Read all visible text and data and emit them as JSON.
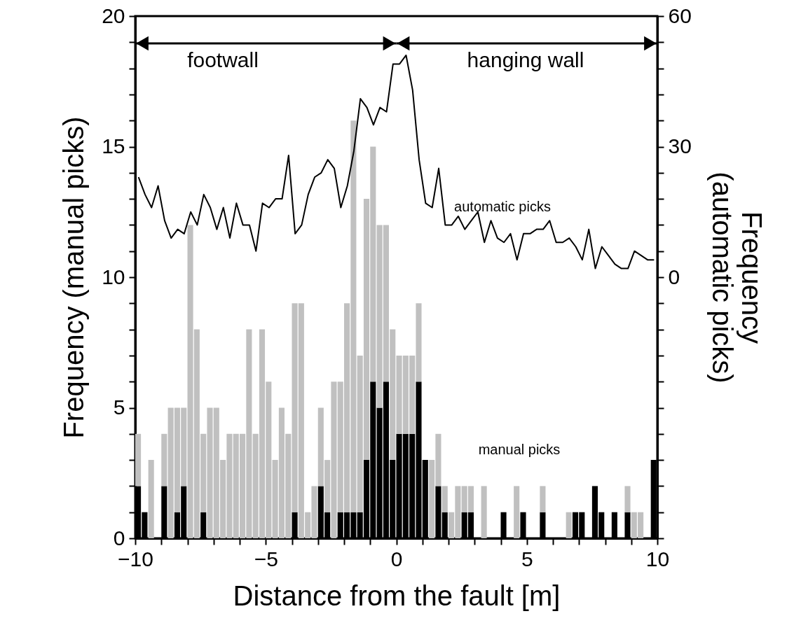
{
  "chart_data": {
    "type": "bar",
    "x": [
      -9.875,
      -9.625,
      -9.375,
      -9.125,
      -8.875,
      -8.625,
      -8.375,
      -8.125,
      -7.875,
      -7.625,
      -7.375,
      -7.125,
      -6.875,
      -6.625,
      -6.375,
      -6.125,
      -5.875,
      -5.625,
      -5.375,
      -5.125,
      -4.875,
      -4.625,
      -4.375,
      -4.125,
      -3.875,
      -3.625,
      -3.375,
      -3.125,
      -2.875,
      -2.625,
      -2.375,
      -2.125,
      -1.875,
      -1.625,
      -1.375,
      -1.125,
      -0.875,
      -0.625,
      -0.375,
      -0.125,
      0.125,
      0.375,
      0.625,
      0.875,
      1.125,
      1.375,
      1.625,
      1.875,
      2.125,
      2.375,
      2.625,
      2.875,
      3.125,
      3.375,
      3.625,
      3.875,
      4.125,
      4.375,
      4.625,
      4.875,
      5.125,
      5.375,
      5.625,
      5.875,
      6.125,
      6.375,
      6.625,
      6.875,
      7.125,
      7.375,
      7.625,
      7.875,
      8.125,
      8.375,
      8.625,
      8.875,
      9.125,
      9.375,
      9.625,
      9.875
    ],
    "xlabel": "Distance from the fault [m]",
    "ylabel": "Frequency (manual picks)",
    "y2label": "Frequency (automatic picks)",
    "stacked": true,
    "series": [
      {
        "color": "#000000",
        "values": [
          2,
          1,
          0,
          0,
          2,
          0,
          1,
          2,
          0,
          0,
          1,
          0,
          0,
          0,
          0,
          0,
          0,
          0,
          0,
          0,
          0,
          0,
          0,
          0,
          1,
          0,
          0,
          0,
          2,
          1,
          0,
          1,
          1,
          1,
          1,
          3,
          6,
          5,
          6,
          3,
          4,
          4,
          4,
          6,
          3,
          0,
          2,
          1,
          0,
          0,
          1,
          1,
          0,
          0,
          0,
          0,
          1,
          0,
          0,
          1,
          0,
          0,
          1,
          0,
          0,
          0,
          0,
          1,
          1,
          0,
          2,
          1,
          0,
          1,
          0,
          1,
          0,
          0,
          0,
          3
        ]
      },
      {
        "color": "#c0c0c0",
        "values": [
          2,
          0,
          3,
          0,
          2,
          5,
          4,
          3,
          12,
          8,
          3,
          5,
          5,
          3,
          4,
          4,
          4,
          8,
          4,
          8,
          6,
          3,
          5,
          4,
          8,
          9,
          1,
          2,
          3,
          2,
          6,
          5,
          8,
          15,
          6,
          10,
          9,
          7,
          6,
          5,
          3,
          3,
          3,
          3,
          0,
          3,
          2,
          1,
          1,
          2,
          1,
          1,
          0,
          2,
          0,
          0,
          0,
          0,
          2,
          0,
          0,
          0,
          1,
          0,
          0,
          0,
          1,
          0,
          0,
          0,
          0,
          0,
          0,
          0,
          0,
          1,
          1,
          1,
          0,
          0
        ]
      },
      {
        "type": "line",
        "axis": "y2",
        "color": "#000000",
        "values": [
          23,
          19,
          16,
          21,
          13,
          9,
          11,
          10,
          15,
          12,
          19,
          16,
          11,
          16,
          9,
          17,
          12,
          12,
          6,
          17,
          16,
          18,
          18,
          28,
          10,
          12,
          19,
          23,
          24,
          27,
          25,
          16,
          21,
          29,
          41,
          39,
          35,
          39,
          38,
          49,
          49,
          51,
          43,
          27,
          17,
          16,
          25,
          12,
          12,
          14,
          11,
          13,
          15,
          8,
          13,
          9,
          8,
          10,
          4,
          10,
          10,
          11,
          11,
          13,
          8,
          8,
          9,
          7,
          4,
          11,
          2,
          7,
          5,
          3,
          2,
          2,
          6,
          5,
          4,
          4
        ]
      }
    ],
    "xlim": [
      -10,
      10
    ],
    "xticks": [
      {
        "value": -10,
        "label": "−10"
      },
      {
        "value": -9,
        "label": null
      },
      {
        "value": -8,
        "label": null
      },
      {
        "value": -7,
        "label": null
      },
      {
        "value": -6,
        "label": null
      },
      {
        "value": -5,
        "label": "−5"
      },
      {
        "value": -4,
        "label": null
      },
      {
        "value": -3,
        "label": null
      },
      {
        "value": -2,
        "label": null
      },
      {
        "value": -1,
        "label": null
      },
      0,
      {
        "value": 1,
        "label": null
      },
      {
        "value": 2,
        "label": null
      },
      {
        "value": 3,
        "label": null
      },
      {
        "value": 4,
        "label": null
      },
      5,
      {
        "value": 6,
        "label": null
      },
      {
        "value": 7,
        "label": null
      },
      {
        "value": 8,
        "label": null
      },
      {
        "value": 9,
        "label": null
      },
      10
    ],
    "ylim": [
      0,
      20
    ],
    "yticks": [
      0,
      {
        "value": 1,
        "label": null
      },
      {
        "value": 2,
        "label": null
      },
      {
        "value": 3,
        "label": null
      },
      {
        "value": 4,
        "label": null
      },
      5,
      {
        "value": 6,
        "label": null
      },
      {
        "value": 7,
        "label": null
      },
      {
        "value": 8,
        "label": null
      },
      {
        "value": 9,
        "label": null
      },
      10,
      {
        "value": 11,
        "label": null
      },
      {
        "value": 12,
        "label": null
      },
      {
        "value": 13,
        "label": null
      },
      {
        "value": 14,
        "label": null
      },
      15,
      {
        "value": 16,
        "label": null
      },
      {
        "value": 17,
        "label": null
      },
      {
        "value": 18,
        "label": null
      },
      {
        "value": 19,
        "label": null
      },
      20
    ],
    "y2lim": [
      -60,
      60
    ],
    "y2ticks": [
      {
        "value": -60,
        "label": null
      },
      {
        "value": -54,
        "label": null
      },
      {
        "value": -48,
        "label": null
      },
      {
        "value": -42,
        "label": null
      },
      {
        "value": -36,
        "label": null
      },
      {
        "value": -30,
        "label": null
      },
      {
        "value": -24,
        "label": null
      },
      {
        "value": -18,
        "label": null
      },
      {
        "value": -12,
        "label": null
      },
      {
        "value": -6,
        "label": null
      },
      0,
      {
        "value": 6,
        "label": null
      },
      {
        "value": 12,
        "label": null
      },
      {
        "value": 18,
        "label": null
      },
      {
        "value": 24,
        "label": null
      },
      30,
      {
        "value": 36,
        "label": null
      },
      {
        "value": 42,
        "label": null
      },
      {
        "value": 48,
        "label": null
      },
      {
        "value": 54,
        "label": null
      },
      60
    ],
    "annotations": [
      "footwall",
      "hanging wall",
      "automatic picks",
      "manual picks"
    ]
  }
}
